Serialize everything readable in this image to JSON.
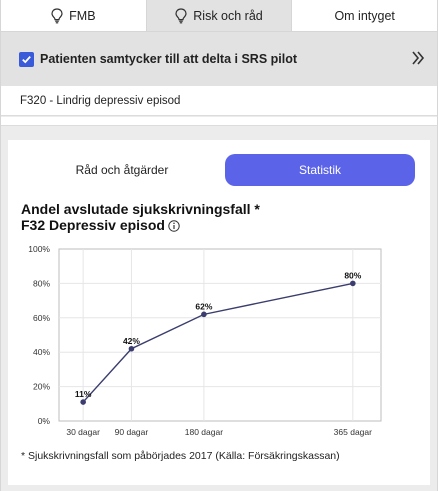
{
  "tabs": [
    {
      "label": "FMB",
      "icon": "lightbulb-icon",
      "active": false
    },
    {
      "label": "Risk och råd",
      "icon": "lightbulb-icon",
      "active": true
    },
    {
      "label": "Om intyget",
      "active": false
    }
  ],
  "consent": {
    "label": "Patienten samtycker till att delta i SRS pilot",
    "checked": true,
    "checkbox_color": "#3a5bd9"
  },
  "diagnosis": {
    "text": "F320 - Lindrig depressiv episod"
  },
  "view_toggle": {
    "inactive_label": "Råd och åtgärder",
    "active_label": "Statistik",
    "active_color": "#5b63e8"
  },
  "chart": {
    "title_line1": "Andel avslutade sjukskrivningsfall *",
    "title_line2": "F32 Depressiv episod",
    "footnote": "* Sjukskrivningsfall som påbörjades 2017 (Källa: Försäkringskassan)"
  },
  "chart_data": {
    "type": "line",
    "x": [
      30,
      90,
      180,
      365
    ],
    "x_tick_labels": [
      "30 dagar",
      "90 dagar",
      "180 dagar",
      "365 dagar"
    ],
    "values": [
      11,
      42,
      62,
      80
    ],
    "data_labels": [
      "11%",
      "42%",
      "62%",
      "80%"
    ],
    "y_tick_labels": [
      "0%",
      "20%",
      "40%",
      "60%",
      "80%",
      "100%"
    ],
    "ylim": [
      0,
      100
    ],
    "xlim": [
      0,
      400
    ],
    "grid": true,
    "line_color": "#3b3d6e"
  }
}
